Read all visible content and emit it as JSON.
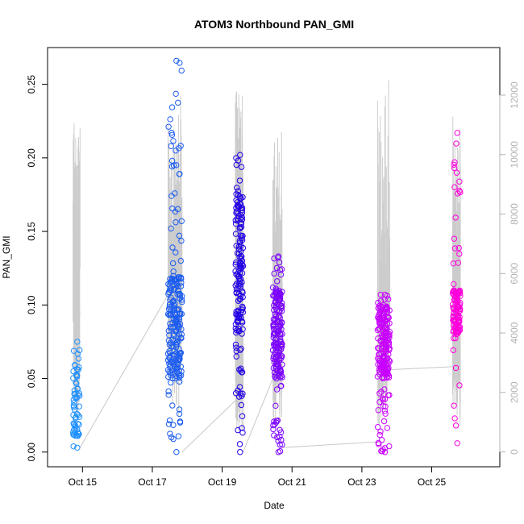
{
  "chart_data": {
    "type": "scatter",
    "title": "ATOM3 Northbound PAN_GMI",
    "xlabel": "Date",
    "ylabel": "PAN_GMI",
    "x_ticks": [
      "Oct 15",
      "Oct 17",
      "Oct 19",
      "Oct 21",
      "Oct 23",
      "Oct 25"
    ],
    "x_tick_days": [
      15,
      17,
      19,
      21,
      23,
      25
    ],
    "xlim": [
      14.0,
      26.95
    ],
    "y_ticks": [
      "0.00",
      "0.05",
      "0.10",
      "0.15",
      "0.20",
      "0.25"
    ],
    "y_tick_values": [
      0,
      0.05,
      0.1,
      0.15,
      0.2,
      0.25
    ],
    "ylim": [
      -0.01,
      0.275
    ],
    "y2_ticks": [
      "0",
      "2000",
      "4000",
      "6000",
      "8000",
      "10000",
      "12000"
    ],
    "y2_tick_values": [
      0,
      2000,
      4000,
      6000,
      8000,
      10000,
      12000
    ],
    "y2lim": [
      -500,
      13600
    ],
    "y2_color": "#b3b3b3",
    "grid": false,
    "legend": "none",
    "flights": [
      {
        "day_start": 14.73,
        "day_end": 14.93,
        "color": "#1e90ff",
        "low": 0.003,
        "high": 0.075,
        "cluster": [
          0.01,
          0.06
        ],
        "n": 60,
        "y2_spikes": [
          5800,
          10200,
          9700,
          10600,
          11600
        ],
        "y2_base": 6200
      },
      {
        "day_start": 17.45,
        "day_end": 17.85,
        "color": "#1c5cf0",
        "low": 0.0,
        "high": 0.266,
        "cluster": [
          0.05,
          0.12
        ],
        "n": 230,
        "y2_spikes": [
          4800,
          9800,
          10200,
          10900,
          11500,
          12100,
          12800
        ],
        "y2_base": 5200
      },
      {
        "day_start": 19.38,
        "day_end": 19.6,
        "color": "#2200e6",
        "low": 0.0,
        "high": 0.202,
        "cluster": [
          0.08,
          0.18
        ],
        "n": 160,
        "y2_spikes": [
          6000,
          12400,
          9800,
          11900,
          12800
        ],
        "y2_base": 3000
      },
      {
        "day_start": 20.45,
        "day_end": 20.72,
        "color": "#7b00ff",
        "low": 0.0,
        "high": 0.133,
        "cluster": [
          0.05,
          0.11
        ],
        "n": 170,
        "y2_spikes": [
          5800,
          8000,
          9400,
          10500,
          11000,
          10200
        ],
        "y2_base": 4200
      },
      {
        "day_start": 23.45,
        "day_end": 23.8,
        "color": "#c800ff",
        "low": 0.0,
        "high": 0.107,
        "cluster": [
          0.05,
          0.1
        ],
        "n": 200,
        "y2_spikes": [
          8000,
          7700,
          6500,
          8800,
          12500,
          12900
        ],
        "y2_base": 4500
      },
      {
        "day_start": 25.6,
        "day_end": 25.82,
        "color": "#ff00dd",
        "low": 0.006,
        "high": 0.217,
        "cluster": [
          0.08,
          0.11
        ],
        "n": 120,
        "y2_spikes": [
          9800,
          11400,
          11700,
          8500,
          8800
        ],
        "y2_base": 4000
      }
    ],
    "connectors": [
      {
        "x1": 14.93,
        "y1": 0.003,
        "x2": 17.45,
        "y2": 0.107
      },
      {
        "x1": 17.85,
        "y1": 0.0,
        "x2": 19.38,
        "y2": 0.035
      },
      {
        "x1": 19.6,
        "y1": 0.0,
        "x2": 20.45,
        "y2": 0.05
      },
      {
        "x1": 20.72,
        "y1": 0.003,
        "x2": 23.45,
        "y2": 0.007
      },
      {
        "x1": 23.8,
        "y1": 0.056,
        "x2": 25.6,
        "y2": 0.058
      }
    ]
  }
}
